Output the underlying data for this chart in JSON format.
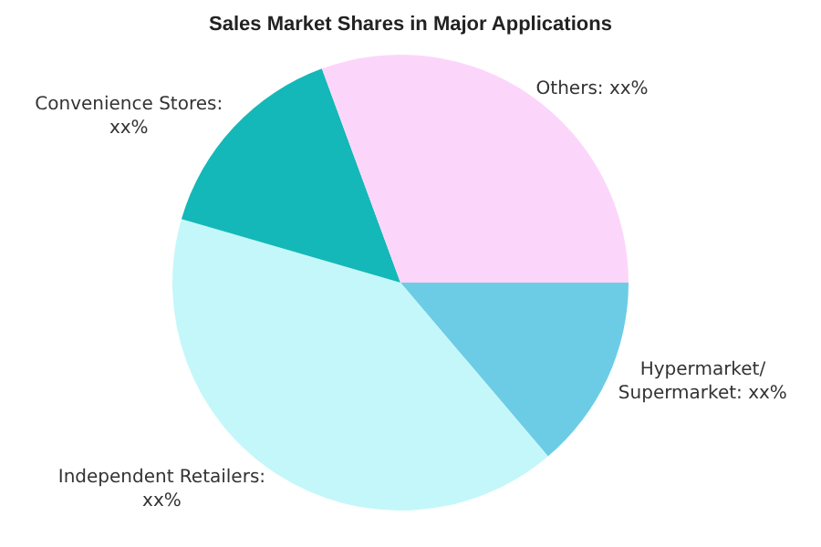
{
  "chart_data": {
    "type": "pie",
    "title": "Sales Market Shares in Major Applications",
    "categories": [
      "Hypermarket/Supermarket: xx%",
      "Independent Retailers: xx%",
      "Convenience Stores: xx%",
      "Others: xx%"
    ],
    "values": [
      13.8,
      40.7,
      14.9,
      30.6
    ],
    "colors": [
      "#6ccce6",
      "#c4f7f9",
      "#14b8b8",
      "#fcd6fa"
    ],
    "legend": false
  }
}
